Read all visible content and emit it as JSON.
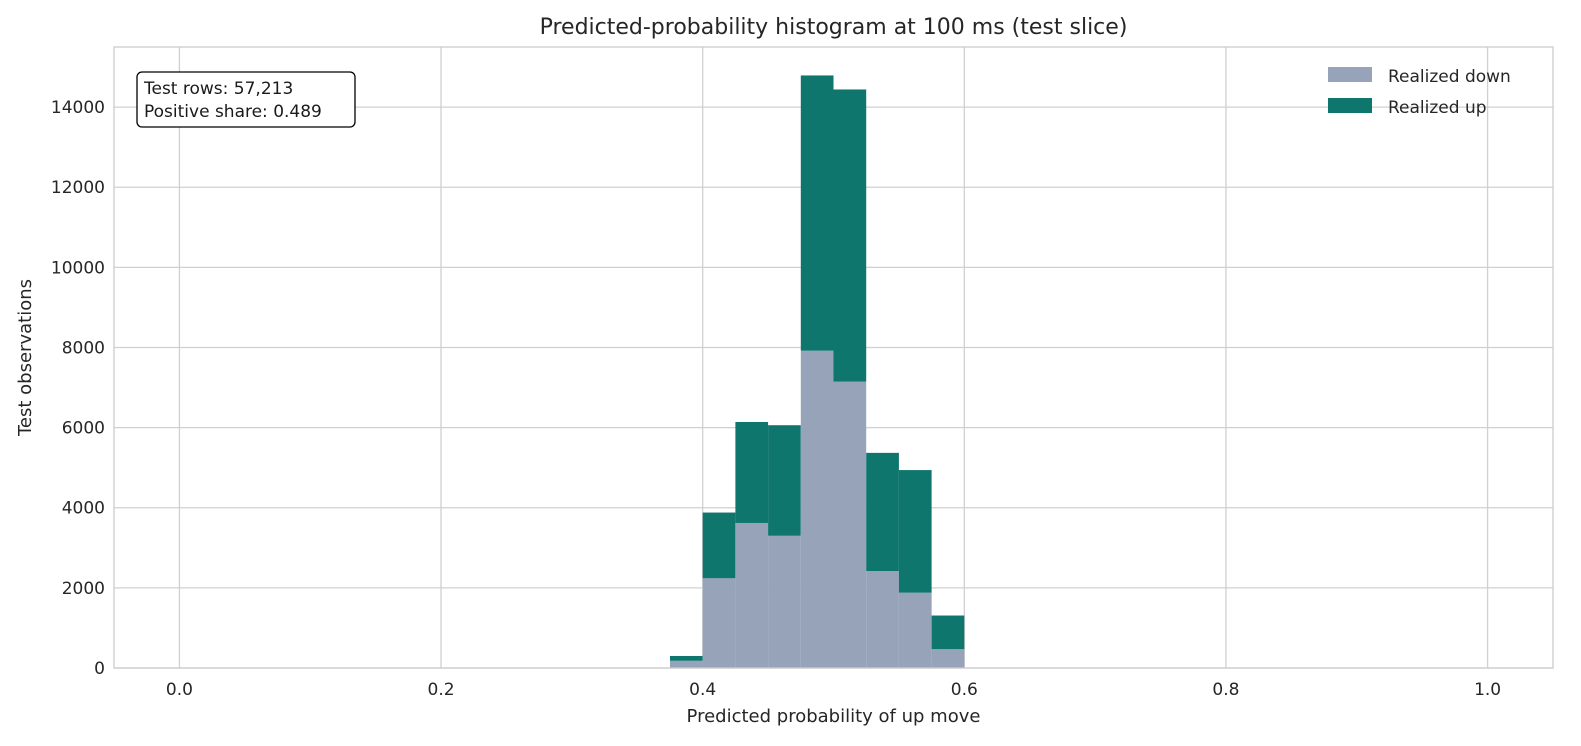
{
  "chart_data": {
    "type": "bar",
    "stacked": true,
    "title": "Predicted-probability histogram at 100 ms (test slice)",
    "xlabel": "Predicted probability of up move",
    "ylabel": "Test observations",
    "xlim": [
      -0.05,
      1.05
    ],
    "ylim": [
      0,
      15500
    ],
    "xticks": [
      0.0,
      0.2,
      0.4,
      0.6,
      0.8,
      1.0
    ],
    "xtick_labels": [
      "0.0",
      "0.2",
      "0.4",
      "0.6",
      "0.8",
      "1.0"
    ],
    "yticks": [
      0,
      2000,
      4000,
      6000,
      8000,
      10000,
      12000,
      14000
    ],
    "ytick_labels": [
      "0",
      "2000",
      "4000",
      "6000",
      "8000",
      "10000",
      "12000",
      "14000"
    ],
    "grid": true,
    "legend_position": "top-right",
    "bin_width": 0.025,
    "bin_starts": [
      0.375,
      0.4,
      0.425,
      0.45,
      0.475,
      0.5,
      0.525,
      0.55,
      0.575
    ],
    "series": [
      {
        "name": "Realized down",
        "color": "#96a3b8",
        "values": [
          180,
          2240,
          3620,
          3300,
          7920,
          7150,
          2420,
          1880,
          470
        ]
      },
      {
        "name": "Realized up",
        "color": "#0f766e",
        "values": [
          120,
          1640,
          2520,
          2760,
          6870,
          7290,
          2950,
          3060,
          840
        ]
      }
    ],
    "annotation": {
      "lines": [
        "Test rows: 57,213",
        "Positive share: 0.489"
      ],
      "position": "top-left"
    }
  }
}
